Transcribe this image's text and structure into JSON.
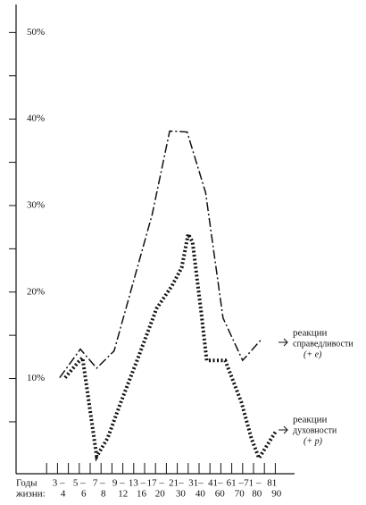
{
  "chart_data": {
    "type": "line",
    "xlim": [
      0,
      24
    ],
    "ylim": [
      -1,
      51
    ],
    "yticks": [
      {
        "value": 10,
        "label": "10%"
      },
      {
        "value": 20,
        "label": "20%"
      },
      {
        "value": 30,
        "label": "30%"
      },
      {
        "value": 40,
        "label": "40%"
      },
      {
        "value": 50,
        "label": "50%"
      }
    ],
    "yminorticks": [
      5,
      15,
      25,
      35,
      45
    ],
    "xticks": [
      1,
      2,
      3,
      4,
      5,
      6,
      7,
      8,
      9,
      10,
      11,
      12,
      13,
      14,
      15,
      16,
      17,
      18,
      19,
      20,
      21,
      22
    ],
    "xlabel_rows": [
      "Годы",
      "жизни:"
    ],
    "xlabels": [
      {
        "value": 2.1,
        "top": "3 –",
        "bottom": "4"
      },
      {
        "value": 4.0,
        "top": "5 –",
        "bottom": "6"
      },
      {
        "value": 5.8,
        "top": "7 –",
        "bottom": "8"
      },
      {
        "value": 7.6,
        "top": "9 –",
        "bottom": "12"
      },
      {
        "value": 9.3,
        "top": "13 –",
        "bottom": "16"
      },
      {
        "value": 11.0,
        "top": "17 –",
        "bottom": "20"
      },
      {
        "value": 12.9,
        "top": "21–",
        "bottom": "30"
      },
      {
        "value": 14.7,
        "top": "31–",
        "bottom": "40"
      },
      {
        "value": 16.5,
        "top": "41–",
        "bottom": "60"
      },
      {
        "value": 18.3,
        "top": "61 –",
        "bottom": "70"
      },
      {
        "value": 19.9,
        "top": "71 –",
        "bottom": "80"
      },
      {
        "value": 21.7,
        "top": "81",
        "bottom": "90"
      }
    ],
    "series": [
      {
        "name_lines": [
          "реакции",
          "справедливости"
        ],
        "sign": "(+ е)",
        "style": "dashdot",
        "color": "#111111",
        "x": [
          2.2,
          4.1,
          5.6,
          7.2,
          10.7,
          12.3,
          13.9,
          15.6,
          17.2,
          19.0,
          20.7
        ],
        "values": [
          10.1,
          13.4,
          11.2,
          13.2,
          29,
          38.6,
          38.5,
          31.5,
          17,
          12.1,
          14.5
        ]
      },
      {
        "name_lines": [
          "реакции",
          "духовности"
        ],
        "sign": "(+ р)",
        "style": "asterisk",
        "color": "#111111",
        "x": [
          2.7,
          3.9,
          4.3,
          5.6,
          6.6,
          7.8,
          9.4,
          11.1,
          12.5,
          13.4,
          14.0,
          14.4,
          15.2,
          15.7,
          17.4,
          18.9,
          19.8,
          20.5,
          22.0
        ],
        "values": [
          10.1,
          11.9,
          12.4,
          1,
          3.1,
          7.2,
          12.4,
          18.1,
          20.7,
          22.8,
          26.7,
          25.8,
          17.6,
          12.1,
          12.1,
          7.2,
          3.1,
          0.8,
          3.8
        ]
      }
    ]
  }
}
